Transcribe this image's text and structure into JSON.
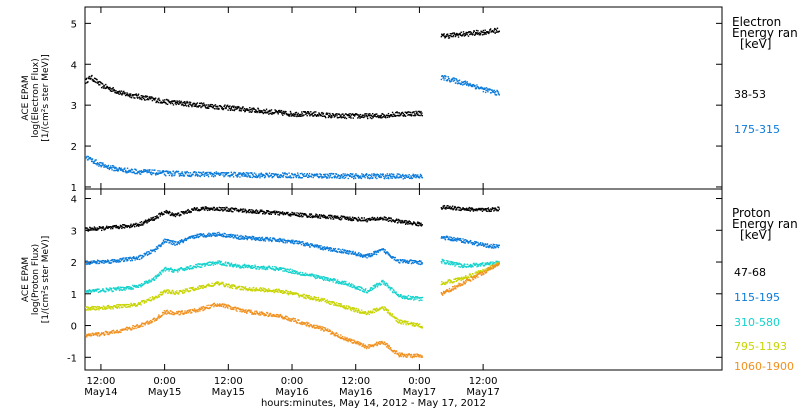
{
  "x_axis": {
    "label": "hours:minutes, May 14, 2012 - May 17, 2012",
    "range_hours": [
      -15,
      105
    ],
    "ticks": [
      {
        "hours": -12,
        "time": "12:00",
        "date": "May14"
      },
      {
        "hours": 0,
        "time": "0:00",
        "date": "May15"
      },
      {
        "hours": 12,
        "time": "12:00",
        "date": "May15"
      },
      {
        "hours": 24,
        "time": "0:00",
        "date": "May16"
      },
      {
        "hours": 36,
        "time": "12:00",
        "date": "May16"
      },
      {
        "hours": 48,
        "time": "0:00",
        "date": "May17"
      },
      {
        "hours": 60,
        "time": "12:00",
        "date": "May17"
      }
    ]
  },
  "chart_data": [
    {
      "type": "scatter",
      "ylabel_lines": [
        "ACE EPAM",
        "log(Electron Flux)",
        "[1/(cm²s ster MeV)]"
      ],
      "ylim": [
        0.95,
        5.4
      ],
      "yticks": [
        1,
        2,
        3,
        4,
        5
      ],
      "legend_title_lines": [
        "Electron",
        "Energy ran"
      ],
      "legend_unit": "[keV]",
      "series": [
        {
          "name": "38-53",
          "color": "#000000",
          "x": [
            -15,
            -14,
            -12,
            -10,
            -8,
            -6,
            -4,
            -2,
            0,
            4,
            8,
            12,
            16,
            20,
            24,
            28,
            32,
            36,
            40,
            44,
            48.5,
            52,
            56,
            60,
            63
          ],
          "y": [
            3.6,
            3.7,
            3.5,
            3.4,
            3.3,
            3.25,
            3.2,
            3.15,
            3.1,
            3.05,
            3.0,
            2.95,
            2.9,
            2.85,
            2.8,
            2.8,
            2.75,
            2.75,
            2.75,
            2.8,
            2.82,
            4.7,
            4.75,
            4.8,
            4.85
          ],
          "gaps_after_x": [
            48.5
          ]
        },
        {
          "name": "175-315",
          "color": "#0a7ad9",
          "x": [
            -15,
            -12,
            -9,
            -6,
            -3,
            0,
            6,
            12,
            18,
            24,
            30,
            36,
            42,
            48.5,
            52,
            55,
            58,
            60,
            63
          ],
          "y": [
            1.75,
            1.55,
            1.45,
            1.4,
            1.38,
            1.35,
            1.33,
            1.32,
            1.3,
            1.3,
            1.29,
            1.28,
            1.28,
            1.27,
            3.7,
            3.6,
            3.5,
            3.4,
            3.3
          ],
          "gaps_after_x": [
            48.5
          ]
        }
      ]
    },
    {
      "type": "scatter",
      "ylabel_lines": [
        "ACE EPAM",
        "log(Proton Flux)",
        "[1/(cm²s ster MeV)]"
      ],
      "ylim": [
        -1.4,
        4.3
      ],
      "yticks": [
        -1,
        0,
        1,
        2,
        3,
        4
      ],
      "legend_title_lines": [
        "Proton",
        "Energy ran"
      ],
      "legend_unit": "[keV]",
      "series": [
        {
          "name": "47-68",
          "color": "#000000",
          "x": [
            -15,
            -10,
            -5,
            -2,
            0,
            2,
            6,
            10,
            14,
            18,
            22,
            26,
            30,
            34,
            38,
            41,
            44,
            48.5,
            52,
            56,
            60,
            63
          ],
          "y": [
            3.05,
            3.1,
            3.2,
            3.4,
            3.6,
            3.5,
            3.7,
            3.7,
            3.65,
            3.6,
            3.55,
            3.5,
            3.45,
            3.4,
            3.35,
            3.4,
            3.3,
            3.2,
            3.75,
            3.7,
            3.65,
            3.7
          ],
          "gaps_after_x": [
            48.5
          ]
        },
        {
          "name": "115-195",
          "color": "#0a7ad9",
          "x": [
            -15,
            -10,
            -5,
            -2,
            0,
            2,
            6,
            10,
            14,
            18,
            22,
            26,
            30,
            34,
            38,
            41,
            44,
            48.5,
            52,
            56,
            60,
            63
          ],
          "y": [
            2.0,
            2.05,
            2.15,
            2.4,
            2.7,
            2.6,
            2.85,
            2.9,
            2.8,
            2.75,
            2.7,
            2.6,
            2.45,
            2.35,
            2.2,
            2.4,
            2.05,
            2.0,
            2.8,
            2.7,
            2.55,
            2.5
          ],
          "gaps_after_x": [
            48.5
          ]
        },
        {
          "name": "310-580",
          "color": "#14d2cc",
          "x": [
            -15,
            -10,
            -5,
            -2,
            0,
            2,
            6,
            10,
            14,
            18,
            22,
            26,
            30,
            34,
            38,
            41,
            44,
            48.5,
            52,
            56,
            60,
            63
          ],
          "y": [
            1.1,
            1.15,
            1.25,
            1.5,
            1.8,
            1.75,
            1.9,
            2.0,
            1.9,
            1.85,
            1.8,
            1.65,
            1.5,
            1.35,
            1.1,
            1.4,
            0.95,
            0.85,
            2.05,
            1.9,
            1.95,
            2.0
          ],
          "gaps_after_x": [
            48.5
          ]
        },
        {
          "name": "795-1193",
          "color": "#c8d400",
          "x": [
            -15,
            -10,
            -5,
            -2,
            0,
            2,
            6,
            10,
            14,
            18,
            22,
            26,
            30,
            34,
            38,
            41,
            44,
            48.5,
            52,
            56,
            60,
            63
          ],
          "y": [
            0.55,
            0.6,
            0.7,
            0.9,
            1.1,
            1.05,
            1.2,
            1.35,
            1.2,
            1.15,
            1.1,
            0.95,
            0.8,
            0.6,
            0.4,
            0.6,
            0.15,
            0.0,
            1.35,
            1.5,
            1.75,
            2.0
          ],
          "gaps_after_x": [
            48.5
          ]
        },
        {
          "name": "1060-1900",
          "color": "#f0901e",
          "x": [
            -15,
            -10,
            -5,
            -2,
            0,
            2,
            6,
            10,
            14,
            18,
            22,
            26,
            30,
            34,
            38,
            41,
            44,
            48.5,
            52,
            56,
            60,
            63
          ],
          "y": [
            -0.3,
            -0.2,
            0.0,
            0.2,
            0.45,
            0.4,
            0.5,
            0.7,
            0.5,
            0.4,
            0.3,
            0.1,
            -0.1,
            -0.4,
            -0.65,
            -0.5,
            -0.9,
            -0.95,
            1.0,
            1.35,
            1.7,
            2.0
          ],
          "gaps_after_x": [
            48.5
          ]
        }
      ]
    }
  ]
}
